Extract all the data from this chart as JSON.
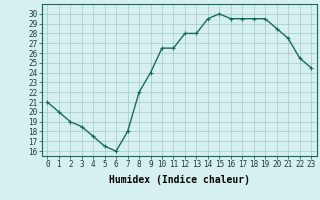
{
  "x": [
    0,
    1,
    2,
    3,
    4,
    5,
    6,
    7,
    8,
    9,
    10,
    11,
    12,
    13,
    14,
    15,
    16,
    17,
    18,
    19,
    20,
    21,
    22,
    23
  ],
  "y": [
    21,
    20,
    19,
    18.5,
    17.5,
    16.5,
    16,
    18,
    22,
    24,
    26.5,
    26.5,
    28,
    28,
    29.5,
    30,
    29.5,
    29.5,
    29.5,
    29.5,
    28.5,
    27.5,
    25.5,
    24.5
  ],
  "line_color": "#1a6b5a",
  "marker": "+",
  "marker_size": 3,
  "bg_color": "#d6f0f0",
  "grid_color": "#a0c8c8",
  "xlabel": "Humidex (Indice chaleur)",
  "xlim": [
    -0.5,
    23.5
  ],
  "ylim": [
    15.5,
    31
  ],
  "yticks": [
    16,
    17,
    18,
    19,
    20,
    21,
    22,
    23,
    24,
    25,
    26,
    27,
    28,
    29,
    30
  ],
  "xticks": [
    0,
    1,
    2,
    3,
    4,
    5,
    6,
    7,
    8,
    9,
    10,
    11,
    12,
    13,
    14,
    15,
    16,
    17,
    18,
    19,
    20,
    21,
    22,
    23
  ],
  "tick_label_fontsize": 5.5,
  "xlabel_fontsize": 7.0,
  "line_width": 1.0
}
